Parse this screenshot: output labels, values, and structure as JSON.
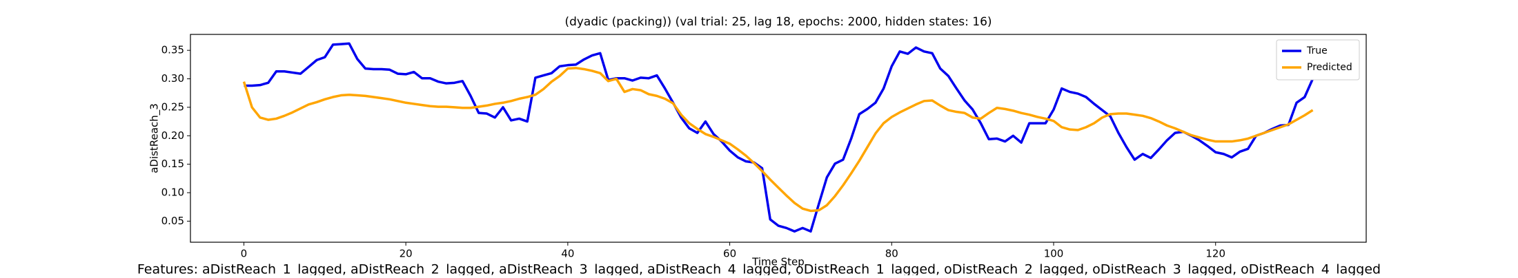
{
  "chart_data": {
    "type": "line",
    "title": "(dyadic (packing)) (val trial: 25, lag 18, epochs: 2000, hidden states: 16)",
    "x_label": "Time Step",
    "y_label": "aDistReach_3",
    "footnote": "Features: aDistReach_1_lagged, aDistReach_2_lagged, aDistReach_3_lagged, aDistReach_4_lagged, oDistReach_1_lagged, oDistReach_2_lagged, oDistReach_3_lagged, oDistReach_4_lagged",
    "x": [
      0,
      1,
      2,
      3,
      4,
      5,
      6,
      7,
      8,
      9,
      10,
      11,
      12,
      13,
      14,
      15,
      16,
      17,
      18,
      19,
      20,
      21,
      22,
      23,
      24,
      25,
      26,
      27,
      28,
      29,
      30,
      31,
      32,
      33,
      34,
      35,
      36,
      37,
      38,
      39,
      40,
      41,
      42,
      43,
      44,
      45,
      46,
      47,
      48,
      49,
      50,
      51,
      52,
      53,
      54,
      55,
      56,
      57,
      58,
      59,
      60,
      61,
      62,
      63,
      64,
      65,
      66,
      67,
      68,
      69,
      70,
      71,
      72,
      73,
      74,
      75,
      76,
      77,
      78,
      79,
      80,
      81,
      82,
      83,
      84,
      85,
      86,
      87,
      88,
      89,
      90,
      91,
      92,
      93,
      94,
      95,
      96,
      97,
      98,
      99,
      100,
      101,
      102,
      103,
      104,
      105,
      106,
      107,
      108,
      109,
      110,
      111,
      112,
      113,
      114,
      115,
      116,
      117,
      118,
      119,
      120,
      121,
      122,
      123,
      124,
      125,
      126,
      127,
      128,
      129,
      130,
      131,
      132
    ],
    "series": [
      {
        "name": "True",
        "color": "#0000ee",
        "values": [
          0.288,
          0.288,
          0.289,
          0.293,
          0.313,
          0.313,
          0.311,
          0.309,
          0.321,
          0.333,
          0.338,
          0.36,
          0.361,
          0.362,
          0.335,
          0.318,
          0.317,
          0.317,
          0.316,
          0.309,
          0.308,
          0.312,
          0.301,
          0.301,
          0.295,
          0.292,
          0.293,
          0.296,
          0.27,
          0.24,
          0.239,
          0.232,
          0.25,
          0.227,
          0.23,
          0.225,
          0.302,
          0.306,
          0.31,
          0.322,
          0.324,
          0.325,
          0.334,
          0.341,
          0.345,
          0.298,
          0.301,
          0.301,
          0.297,
          0.302,
          0.301,
          0.306,
          0.283,
          0.258,
          0.232,
          0.213,
          0.205,
          0.225,
          0.203,
          0.19,
          0.174,
          0.162,
          0.155,
          0.153,
          0.143,
          0.053,
          0.042,
          0.038,
          0.032,
          0.038,
          0.032,
          0.08,
          0.127,
          0.151,
          0.158,
          0.195,
          0.238,
          0.247,
          0.258,
          0.283,
          0.322,
          0.348,
          0.344,
          0.355,
          0.348,
          0.345,
          0.318,
          0.305,
          0.283,
          0.262,
          0.246,
          0.222,
          0.194,
          0.195,
          0.19,
          0.2,
          0.188,
          0.222,
          0.222,
          0.222,
          0.246,
          0.283,
          0.277,
          0.274,
          0.268,
          0.256,
          0.245,
          0.234,
          0.205,
          0.18,
          0.158,
          0.168,
          0.161,
          0.176,
          0.192,
          0.205,
          0.207,
          0.2,
          0.192,
          0.182,
          0.171,
          0.168,
          0.162,
          0.172,
          0.177,
          0.2,
          0.205,
          0.212,
          0.218,
          0.219,
          0.258,
          0.268,
          0.3
        ]
      },
      {
        "name": "Predicted",
        "color": "#ffa500",
        "values": [
          0.295,
          0.25,
          0.232,
          0.228,
          0.23,
          0.235,
          0.241,
          0.248,
          0.255,
          0.259,
          0.264,
          0.268,
          0.271,
          0.272,
          0.271,
          0.27,
          0.268,
          0.266,
          0.264,
          0.261,
          0.258,
          0.256,
          0.254,
          0.252,
          0.251,
          0.251,
          0.25,
          0.249,
          0.249,
          0.251,
          0.253,
          0.256,
          0.258,
          0.261,
          0.265,
          0.268,
          0.272,
          0.282,
          0.295,
          0.305,
          0.318,
          0.319,
          0.317,
          0.314,
          0.31,
          0.296,
          0.3,
          0.277,
          0.282,
          0.28,
          0.273,
          0.27,
          0.265,
          0.257,
          0.237,
          0.222,
          0.212,
          0.203,
          0.198,
          0.192,
          0.186,
          0.176,
          0.165,
          0.152,
          0.138,
          0.123,
          0.109,
          0.095,
          0.082,
          0.072,
          0.068,
          0.069,
          0.078,
          0.094,
          0.113,
          0.134,
          0.156,
          0.18,
          0.204,
          0.222,
          0.233,
          0.241,
          0.248,
          0.255,
          0.261,
          0.262,
          0.253,
          0.245,
          0.242,
          0.24,
          0.232,
          0.23,
          0.24,
          0.249,
          0.247,
          0.244,
          0.24,
          0.237,
          0.233,
          0.23,
          0.226,
          0.215,
          0.211,
          0.21,
          0.215,
          0.222,
          0.232,
          0.238,
          0.239,
          0.239,
          0.237,
          0.235,
          0.231,
          0.225,
          0.218,
          0.213,
          0.207,
          0.201,
          0.197,
          0.193,
          0.19,
          0.19,
          0.19,
          0.192,
          0.195,
          0.2,
          0.205,
          0.21,
          0.215,
          0.22,
          0.228,
          0.236,
          0.245
        ]
      }
    ],
    "xlim": [
      -6.6,
      138.6
    ],
    "ylim": [
      0.013,
      0.378
    ],
    "xticks": [
      0,
      20,
      40,
      60,
      80,
      100,
      120
    ],
    "yticks": [
      0.05,
      {
        "value": 0.1,
        "label": "0.10"
      },
      0.15,
      {
        "value": 0.2,
        "label": "0.20"
      },
      0.25,
      {
        "value": 0.3,
        "label": "0.30"
      },
      0.35
    ],
    "legend": "upper right"
  }
}
